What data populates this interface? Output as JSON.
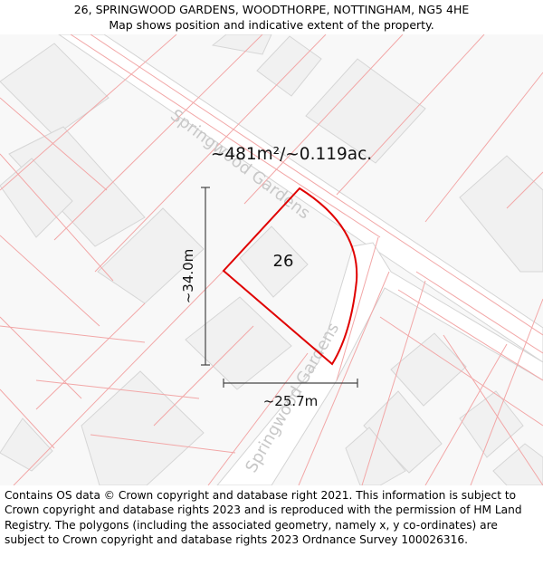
{
  "header": {
    "address": "26, SPRINGWOOD GARDENS, WOODTHORPE, NOTTINGHAM, NG5 4HE",
    "subtitle": "Map shows position and indicative extent of the property."
  },
  "map": {
    "area_label": "~481m²/~0.119ac.",
    "plot_number": "26",
    "height_dimension": "~34.0m",
    "width_dimension": "~25.7m",
    "street_labels": [
      "Springwood Gardens",
      "Springwood Gardens"
    ],
    "colors": {
      "plot_outline": "#e00000",
      "parcel_lines": "#f2a7a7",
      "building_fill": "#f1f1f1",
      "road_fill": "#ffffff",
      "street_label": "#c8c8c8"
    }
  },
  "footer": {
    "copyright": "Contains OS data © Crown copyright and database right 2021. This information is subject to Crown copyright and database rights 2023 and is reproduced with the permission of HM Land Registry. The polygons (including the associated geometry, namely x, y co-ordinates) are subject to Crown copyright and database rights 2023 Ordnance Survey 100026316."
  }
}
